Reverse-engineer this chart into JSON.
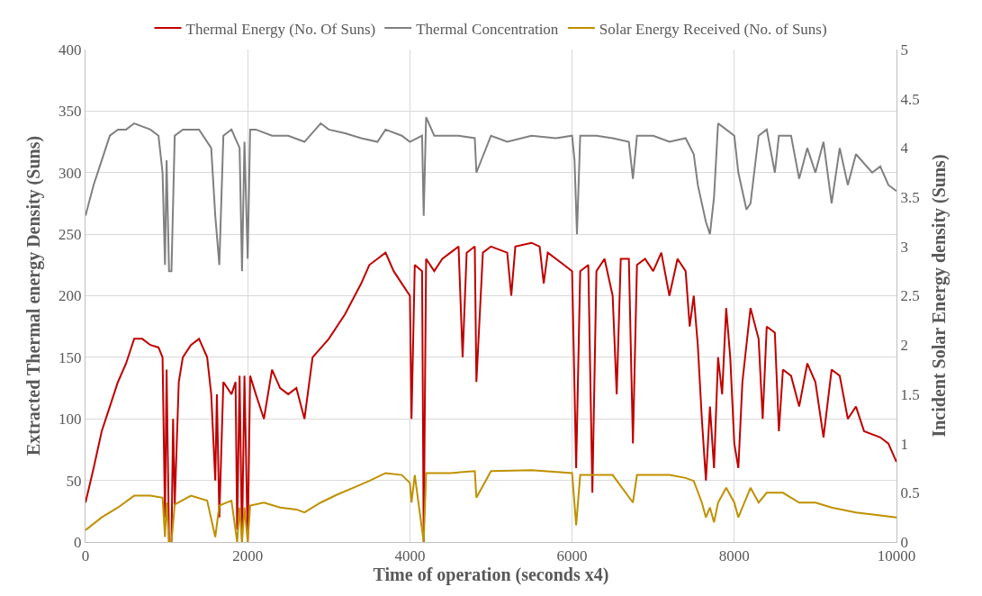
{
  "chart_data": {
    "type": "line",
    "xlabel": "Time of operation (seconds x4)",
    "ylabel": "Extracted Thermal energy Density (Suns)",
    "y2label": "Incident Solar Energy density (Suns)",
    "xlim": [
      0,
      10000
    ],
    "xticks": [
      0,
      2000,
      4000,
      6000,
      8000,
      10000
    ],
    "ylim": [
      0,
      400
    ],
    "yticks": [
      0,
      50,
      100,
      150,
      200,
      250,
      300,
      350,
      400
    ],
    "y2lim": [
      0,
      5
    ],
    "y2ticks": [
      0,
      0.5,
      1,
      1.5,
      2,
      2.5,
      3,
      3.5,
      4,
      4.5,
      5
    ],
    "grid": true,
    "legend": "top",
    "marker": "none",
    "line_style": "solid",
    "series": [
      {
        "name": "Thermal Energy (No. Of Suns)",
        "color": "#c00000",
        "x": [
          0,
          100,
          200,
          300,
          400,
          500,
          550,
          600,
          700,
          800,
          900,
          950,
          980,
          1000,
          1030,
          1060,
          1080,
          1100,
          1150,
          1200,
          1300,
          1400,
          1500,
          1550,
          1600,
          1620,
          1650,
          1700,
          1800,
          1850,
          1870,
          1900,
          1930,
          1960,
          2000,
          2030,
          2100,
          2200,
          2300,
          2400,
          2500,
          2600,
          2700,
          2800,
          3000,
          3200,
          3400,
          3500,
          3600,
          3700,
          3800,
          3900,
          4000,
          4020,
          4060,
          4150,
          4170,
          4200,
          4300,
          4400,
          4500,
          4600,
          4650,
          4700,
          4800,
          4820,
          4900,
          5000,
          5200,
          5250,
          5300,
          5500,
          5600,
          5650,
          5700,
          5900,
          6000,
          6050,
          6100,
          6200,
          6250,
          6300,
          6400,
          6500,
          6550,
          6600,
          6700,
          6750,
          6800,
          6900,
          7000,
          7100,
          7200,
          7300,
          7400,
          7450,
          7500,
          7550,
          7600,
          7650,
          7700,
          7750,
          7800,
          7850,
          7900,
          7950,
          8000,
          8050,
          8100,
          8200,
          8300,
          8350,
          8400,
          8500,
          8550,
          8600,
          8700,
          8800,
          8900,
          9000,
          9100,
          9200,
          9300,
          9400,
          9500,
          9600,
          9800,
          9900,
          10000
        ],
        "values": [
          32,
          60,
          90,
          110,
          130,
          145,
          155,
          165,
          165,
          160,
          158,
          150,
          20,
          140,
          0,
          0,
          100,
          30,
          130,
          150,
          160,
          165,
          150,
          120,
          50,
          120,
          20,
          130,
          120,
          130,
          10,
          135,
          0,
          135,
          0,
          135,
          120,
          100,
          140,
          125,
          120,
          125,
          100,
          150,
          165,
          185,
          210,
          225,
          230,
          235,
          220,
          210,
          200,
          100,
          225,
          220,
          0,
          230,
          220,
          230,
          235,
          240,
          150,
          235,
          240,
          130,
          235,
          240,
          235,
          200,
          240,
          243,
          240,
          210,
          235,
          225,
          220,
          60,
          220,
          225,
          40,
          220,
          230,
          200,
          120,
          230,
          230,
          80,
          225,
          230,
          220,
          235,
          200,
          230,
          220,
          175,
          200,
          160,
          100,
          50,
          110,
          60,
          150,
          120,
          190,
          150,
          80,
          60,
          130,
          190,
          165,
          100,
          175,
          170,
          90,
          140,
          135,
          110,
          145,
          130,
          85,
          140,
          135,
          100,
          110,
          90,
          85,
          80,
          65
        ]
      },
      {
        "name": "Thermal Concentration",
        "color": "#808080",
        "x": [
          0,
          100,
          200,
          300,
          400,
          500,
          600,
          800,
          900,
          950,
          980,
          1000,
          1030,
          1060,
          1100,
          1200,
          1400,
          1550,
          1600,
          1650,
          1700,
          1800,
          1900,
          1930,
          1960,
          2000,
          2030,
          2100,
          2300,
          2500,
          2700,
          2900,
          3000,
          3200,
          3400,
          3600,
          3700,
          3900,
          4000,
          4150,
          4170,
          4200,
          4300,
          4600,
          4800,
          4820,
          5000,
          5200,
          5500,
          5800,
          6000,
          6030,
          6060,
          6100,
          6300,
          6500,
          6700,
          6750,
          6800,
          7000,
          7200,
          7400,
          7500,
          7550,
          7650,
          7700,
          7750,
          7800,
          7900,
          8000,
          8050,
          8150,
          8200,
          8300,
          8400,
          8500,
          8550,
          8700,
          8800,
          8900,
          9000,
          9100,
          9200,
          9300,
          9400,
          9500,
          9700,
          9800,
          9900,
          10000
        ],
        "values": [
          265,
          290,
          310,
          330,
          335,
          335,
          340,
          335,
          330,
          300,
          225,
          310,
          220,
          220,
          330,
          335,
          335,
          320,
          265,
          225,
          330,
          335,
          320,
          220,
          325,
          230,
          335,
          335,
          330,
          330,
          325,
          340,
          335,
          332,
          328,
          325,
          335,
          330,
          325,
          330,
          265,
          345,
          330,
          330,
          328,
          300,
          330,
          325,
          330,
          328,
          330,
          310,
          250,
          330,
          330,
          328,
          325,
          295,
          330,
          330,
          325,
          328,
          315,
          290,
          260,
          250,
          280,
          340,
          335,
          330,
          300,
          270,
          275,
          330,
          335,
          300,
          330,
          330,
          295,
          320,
          300,
          325,
          275,
          320,
          290,
          315,
          300,
          305,
          290,
          285
        ]
      },
      {
        "name": "Solar Energy Received (No. of Suns)",
        "color": "#bf9000",
        "axis": "y2",
        "x": [
          0,
          200,
          400,
          600,
          800,
          950,
          980,
          1000,
          1030,
          1060,
          1100,
          1300,
          1500,
          1600,
          1650,
          1800,
          1870,
          1900,
          1930,
          1960,
          2000,
          2030,
          2200,
          2400,
          2600,
          2700,
          2900,
          3100,
          3300,
          3500,
          3700,
          3900,
          4000,
          4020,
          4060,
          4170,
          4200,
          4500,
          4800,
          4820,
          5000,
          5500,
          6000,
          6050,
          6100,
          6500,
          6750,
          6800,
          7200,
          7400,
          7500,
          7600,
          7650,
          7700,
          7750,
          7800,
          7900,
          8000,
          8050,
          8100,
          8200,
          8300,
          8400,
          8600,
          8800,
          9000,
          9200,
          9500,
          9800,
          10000
        ],
        "values": [
          0.12,
          0.25,
          0.35,
          0.47,
          0.47,
          0.45,
          0.05,
          0.4,
          0,
          0,
          0.38,
          0.47,
          0.42,
          0.05,
          0.37,
          0.42,
          0,
          0.35,
          0,
          0.35,
          0,
          0.37,
          0.4,
          0.35,
          0.33,
          0.3,
          0.4,
          0.48,
          0.55,
          0.62,
          0.7,
          0.68,
          0.6,
          0.4,
          0.68,
          0,
          0.7,
          0.7,
          0.72,
          0.45,
          0.72,
          0.73,
          0.7,
          0.17,
          0.68,
          0.68,
          0.4,
          0.68,
          0.68,
          0.65,
          0.62,
          0.4,
          0.25,
          0.35,
          0.2,
          0.4,
          0.55,
          0.4,
          0.25,
          0.35,
          0.55,
          0.4,
          0.5,
          0.5,
          0.4,
          0.4,
          0.35,
          0.3,
          0.27,
          0.25
        ]
      }
    ]
  }
}
